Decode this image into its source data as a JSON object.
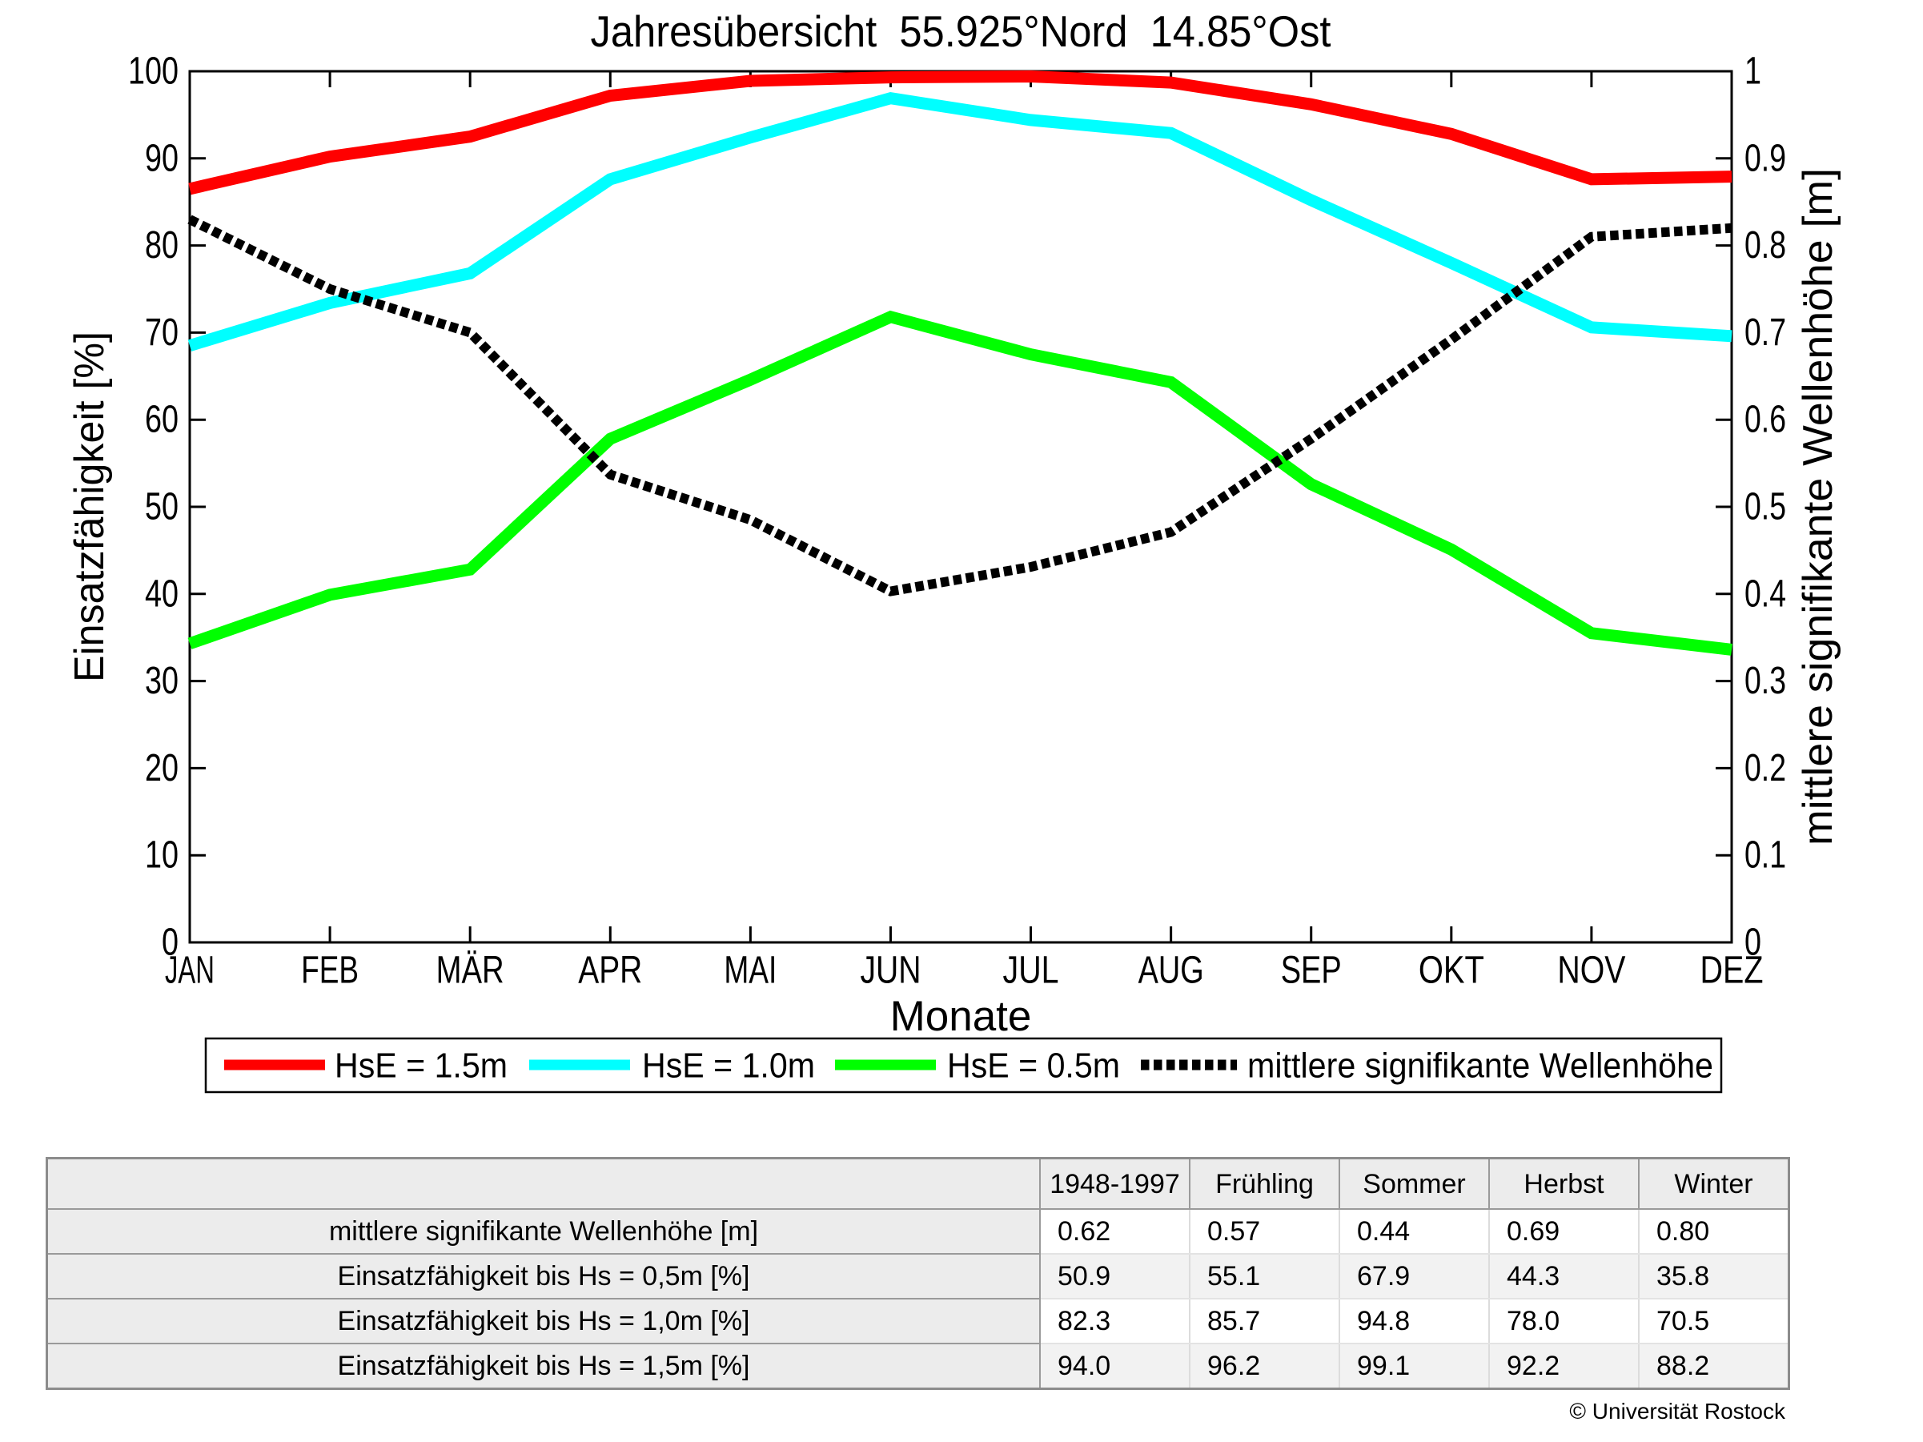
{
  "title": "Jahresübersicht  55.925°Nord  14.85°Ost",
  "chart_data": {
    "type": "line",
    "title": "Jahresübersicht  55.925°Nord  14.85°Ost",
    "xlabel": "Monate",
    "ylabel_left": "Einsatzfähigkeit [%]",
    "ylabel_right": "mittlere signifikante Wellenhöhe [m]",
    "x_categories": [
      "JAN",
      "FEB",
      "MÄR",
      "APR",
      "MAI",
      "JUN",
      "JUL",
      "AUG",
      "SEP",
      "OKT",
      "NOV",
      "DEZ"
    ],
    "ylim_left": [
      0,
      100
    ],
    "ylim_right": [
      0,
      1
    ],
    "yticks_left": [
      "0",
      "10",
      "20",
      "30",
      "40",
      "50",
      "60",
      "70",
      "80",
      "90",
      "100"
    ],
    "yticks_right": [
      "0",
      "0.1",
      "0.2",
      "0.3",
      "0.4",
      "0.5",
      "0.6",
      "0.7",
      "0.8",
      "0.9",
      "1"
    ],
    "grid": false,
    "legend_position": "below-axis",
    "series": [
      {
        "name": "HsE = 1.5m",
        "color": "#ff0000",
        "style": "solid",
        "axis": "left",
        "values": [
          86.5,
          90.2,
          92.5,
          97.2,
          98.9,
          99.3,
          99.4,
          98.7,
          96.2,
          92.8,
          87.6,
          87.9
        ]
      },
      {
        "name": "HsE = 1.0m",
        "color": "#00ffff",
        "style": "solid",
        "axis": "left",
        "values": [
          68.5,
          73.4,
          76.8,
          87.6,
          92.4,
          96.9,
          94.4,
          92.9,
          85.2,
          78.0,
          70.6,
          69.6
        ]
      },
      {
        "name": "HsE = 0.5m",
        "color": "#00ff00",
        "style": "solid",
        "axis": "left",
        "values": [
          34.3,
          39.9,
          42.8,
          57.8,
          64.6,
          71.8,
          67.5,
          64.3,
          52.6,
          45.1,
          35.5,
          33.6
        ]
      },
      {
        "name": "mittlere signifikante Wellenhöhe",
        "color": "#000000",
        "style": "dotted",
        "axis": "right",
        "values": [
          0.83,
          0.75,
          0.7,
          0.537,
          0.485,
          0.403,
          0.431,
          0.471,
          0.578,
          0.692,
          0.81,
          0.82
        ]
      }
    ]
  },
  "table": {
    "columns": [
      "",
      "1948-1997",
      "Frühling",
      "Sommer",
      "Herbst",
      "Winter"
    ],
    "rows": [
      {
        "label": "mittlere signifikante Wellenhöhe [m]",
        "values": [
          "0.62",
          "0.57",
          "0.44",
          "0.69",
          "0.80"
        ]
      },
      {
        "label": "Einsatzfähigkeit bis Hs = 0,5m [%]",
        "values": [
          "50.9",
          "55.1",
          "67.9",
          "44.3",
          "35.8"
        ]
      },
      {
        "label": "Einsatzfähigkeit bis Hs = 1,0m [%]",
        "values": [
          "82.3",
          "85.7",
          "94.8",
          "78.0",
          "70.5"
        ]
      },
      {
        "label": "Einsatzfähigkeit bis Hs = 1,5m [%]",
        "values": [
          "94.0",
          "96.2",
          "99.1",
          "92.2",
          "88.2"
        ]
      }
    ]
  },
  "footer": {
    "copyright": "© Universität Rostock"
  }
}
